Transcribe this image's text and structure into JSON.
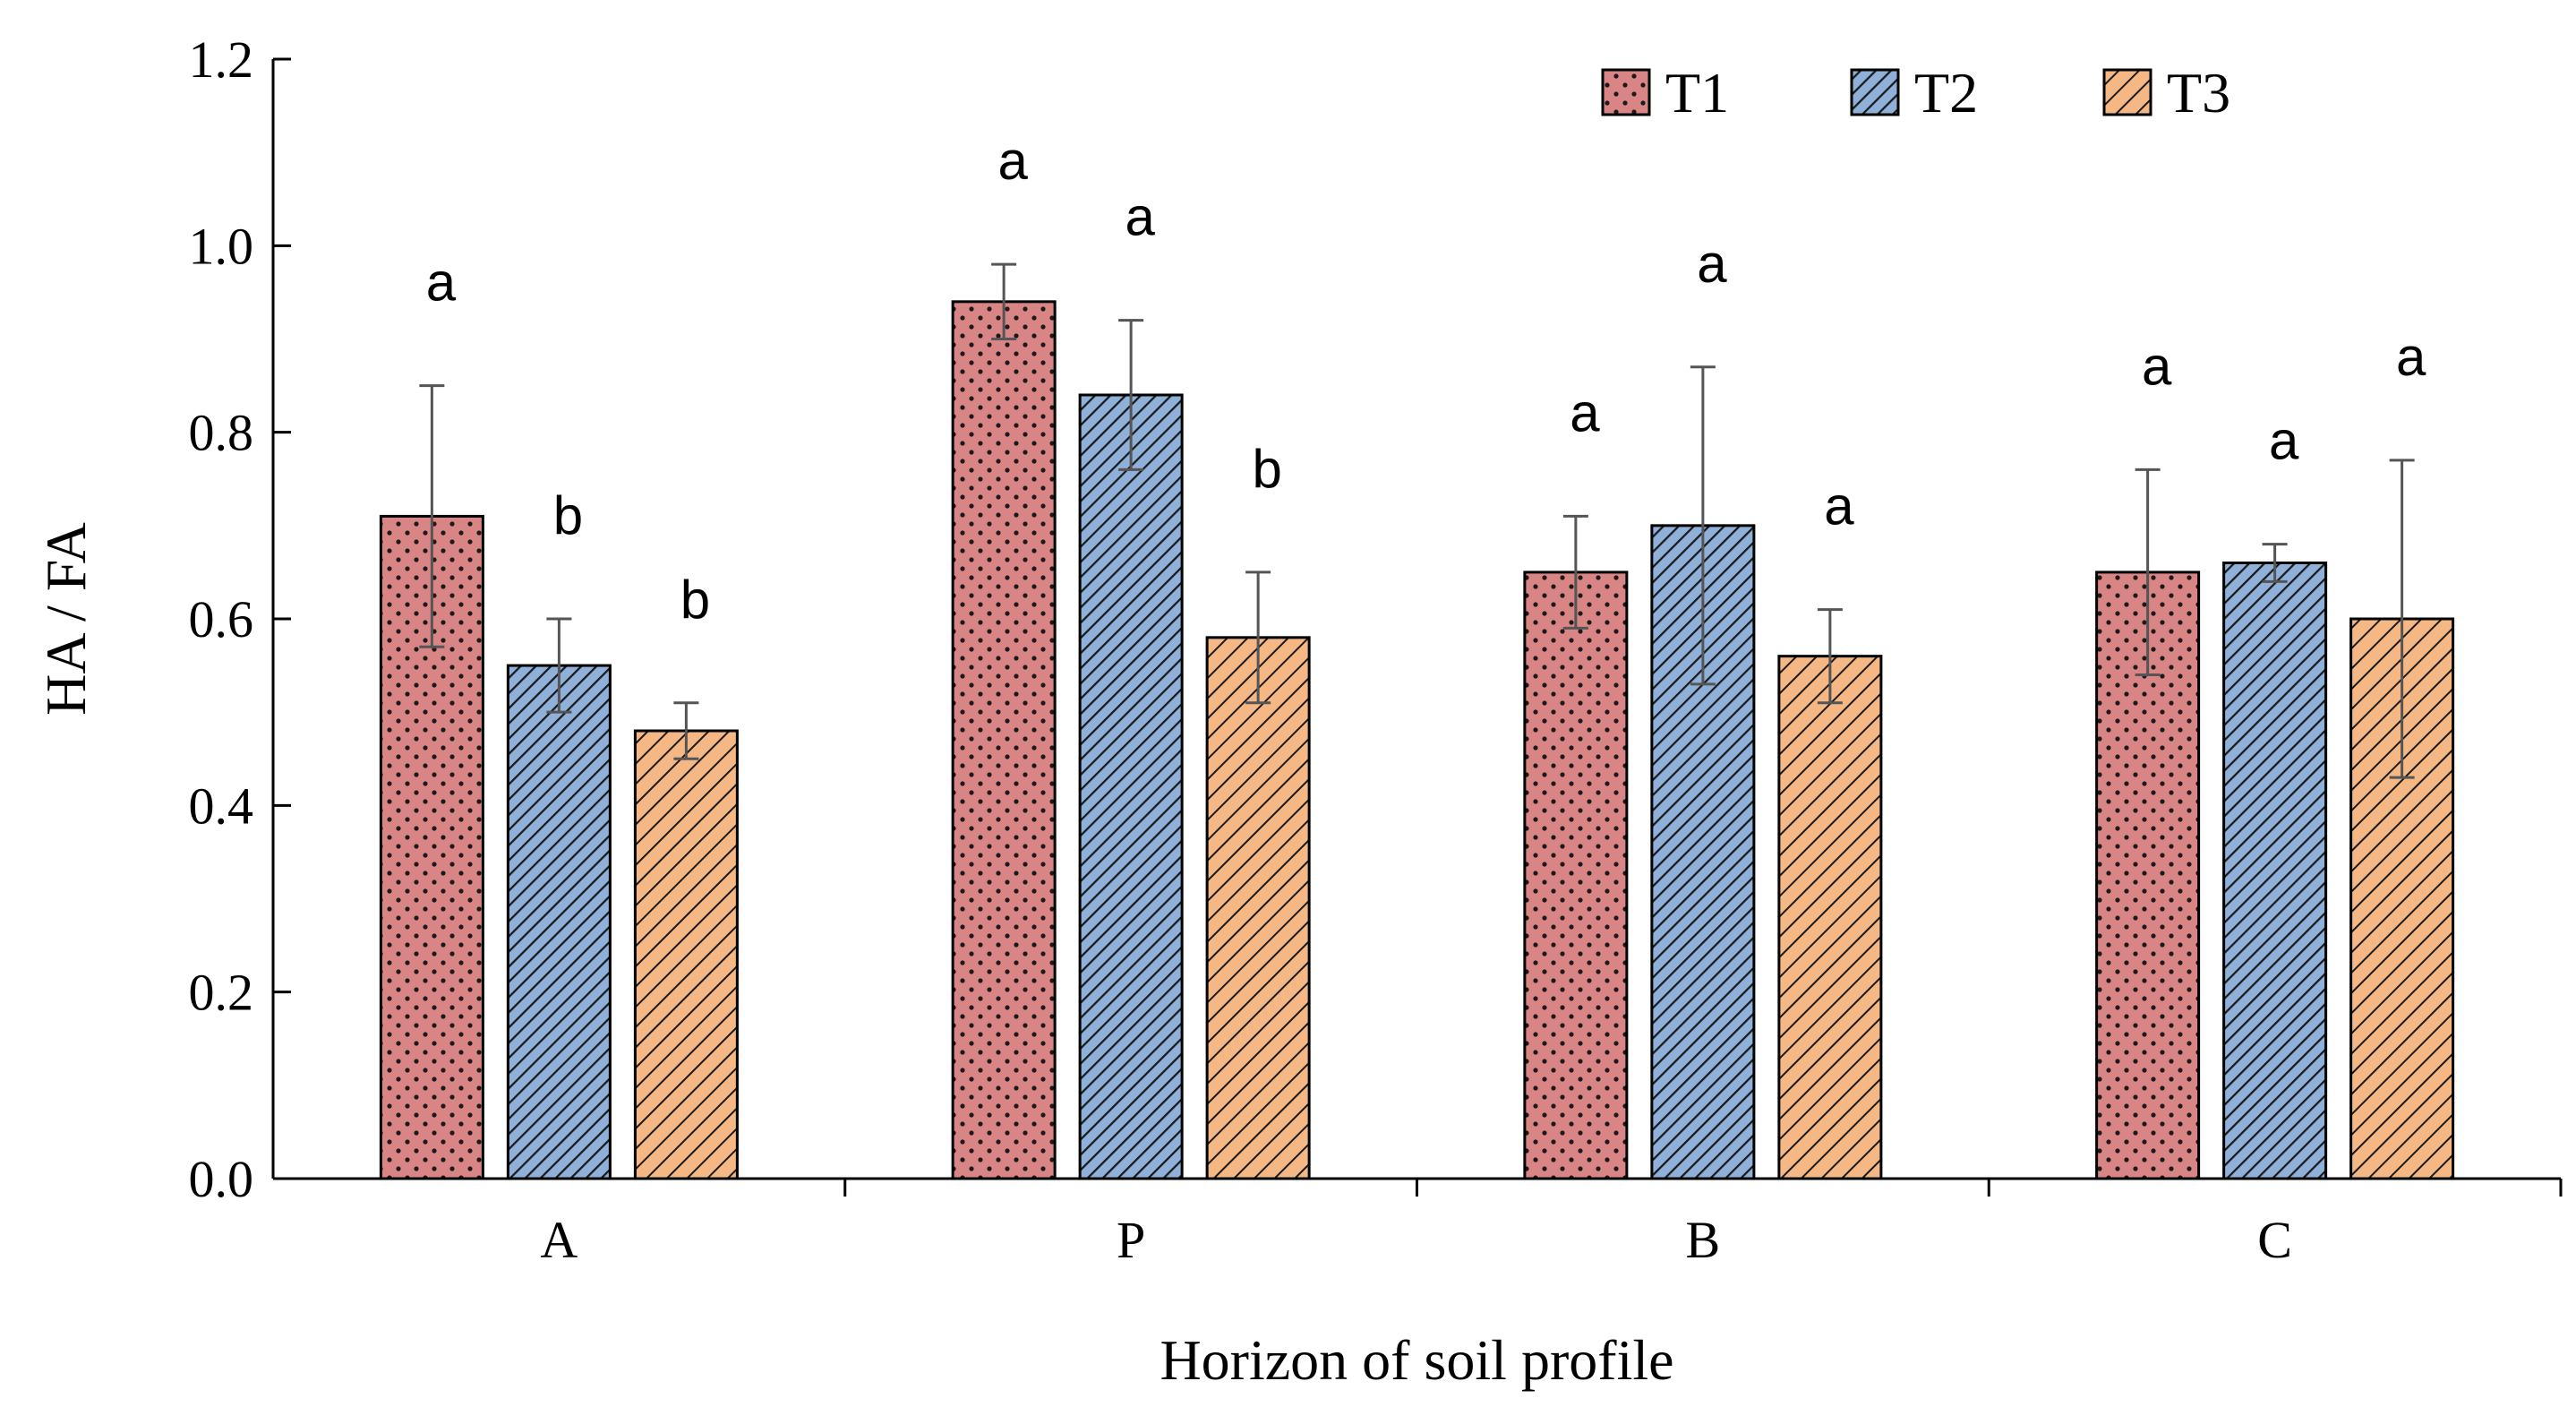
{
  "chart_data": {
    "type": "bar",
    "title": "",
    "xlabel": "Horizon of soil profile",
    "ylabel": "HA / FA",
    "ylim": [
      0,
      1.2
    ],
    "yticks": [
      "0.0",
      "0.2",
      "0.4",
      "0.6",
      "0.8",
      "1.0",
      "1.2"
    ],
    "categories": [
      "A",
      "P",
      "B",
      "C"
    ],
    "legend_position": "top-right",
    "grid": false,
    "series": [
      {
        "name": "T1",
        "color": "#d98585",
        "pattern": "dots",
        "values": [
          0.71,
          0.94,
          0.65,
          0.65
        ],
        "errors": [
          0.14,
          0.04,
          0.06,
          0.11
        ],
        "letters": [
          "a",
          "a",
          "a",
          "a"
        ]
      },
      {
        "name": "T2",
        "color": "#8fb0d9",
        "pattern": "diagonal-dense",
        "values": [
          0.55,
          0.84,
          0.7,
          0.66
        ],
        "errors": [
          0.05,
          0.08,
          0.17,
          0.02
        ],
        "letters": [
          "b",
          "a",
          "a",
          "a"
        ]
      },
      {
        "name": "T3",
        "color": "#f5b884",
        "pattern": "diagonal",
        "values": [
          0.48,
          0.58,
          0.56,
          0.6
        ],
        "errors": [
          0.03,
          0.07,
          0.05,
          0.17
        ],
        "letters": [
          "b",
          "b",
          "a",
          "a"
        ]
      }
    ]
  }
}
